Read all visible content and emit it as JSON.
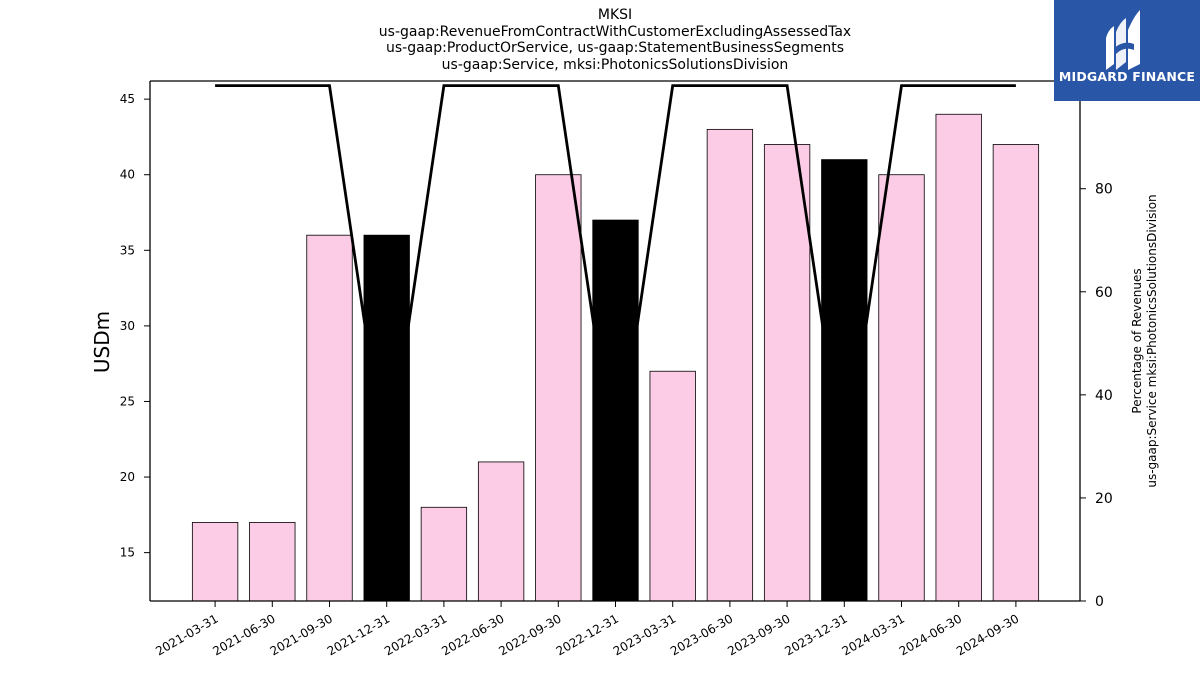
{
  "title_lines": [
    "MKSI",
    "us-gaap:RevenueFromContractWithCustomerExcludingAssessedTax",
    "us-gaap:ProductOrService, us-gaap:StatementBusinessSegments",
    "us-gaap:Service, mksi:PhotonicsSolutionsDivision"
  ],
  "logo": {
    "text": "MIDGARD FINANCE",
    "background": "#2a56a8"
  },
  "chart_data": {
    "type": "bar",
    "categories": [
      "2021-03-31",
      "2021-06-30",
      "2021-09-30",
      "2021-12-31",
      "2022-03-31",
      "2022-06-30",
      "2022-09-30",
      "2022-12-31",
      "2023-03-31",
      "2023-06-30",
      "2023-09-30",
      "2023-12-31",
      "2024-03-31",
      "2024-06-30",
      "2024-09-30"
    ],
    "series": [
      {
        "values": [
          17,
          17,
          36,
          36,
          18,
          21,
          40,
          37,
          27,
          43,
          42,
          41,
          40,
          44,
          42
        ],
        "colors": [
          "#fccbe5",
          "#fccbe5",
          "#fccbe5",
          "#000000",
          "#fccbe5",
          "#fccbe5",
          "#fccbe5",
          "#000000",
          "#fccbe5",
          "#fccbe5",
          "#fccbe5",
          "#000000",
          "#fccbe5",
          "#fccbe5",
          "#fccbe5"
        ],
        "axis": "left"
      },
      {
        "type": "line",
        "values": [
          100,
          100,
          100,
          25,
          100,
          100,
          100,
          25,
          100,
          100,
          100,
          25,
          100,
          100,
          100
        ],
        "color": "#000000",
        "axis": "right"
      }
    ],
    "ylabel": "USDm",
    "ylabel_right": [
      "Percentage of Revenues",
      "us-gaap:Service mksi:PhotonicsSolutionsDivision"
    ],
    "ylim": [
      11.8,
      46.2
    ],
    "ylim_right": [
      0,
      100.9
    ],
    "yticks": [
      15,
      20,
      25,
      30,
      35,
      40,
      45
    ],
    "yticks_right": [
      0,
      20,
      40,
      60,
      80,
      100
    ],
    "grid": false
  }
}
